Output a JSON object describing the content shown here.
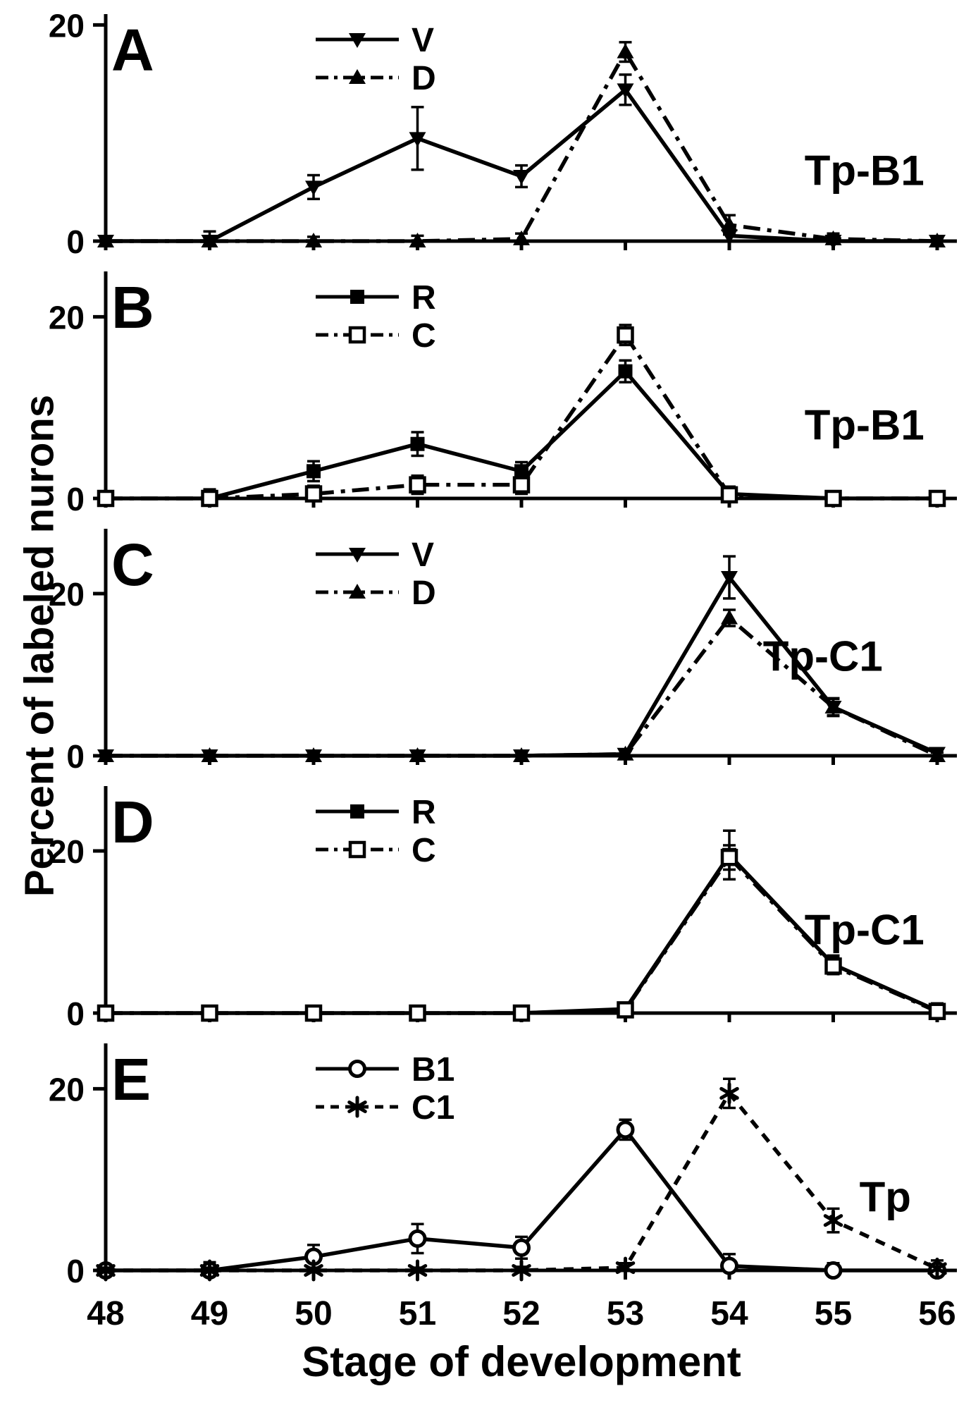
{
  "figure": {
    "background": "#ffffff",
    "ink": "#000000"
  },
  "chart_data": {
    "type": "line",
    "title": "",
    "xlabel": "Stage of development",
    "ylabel": "Percent of labeled nurons",
    "x": [
      48,
      49,
      50,
      51,
      52,
      53,
      54,
      55,
      56
    ],
    "yticks": [
      0,
      20
    ],
    "grid": false,
    "legend_position": "top-center-left",
    "panels": [
      {
        "letter": "A",
        "annotation": "Tp-B1",
        "annotation_xy": [
          55.3,
          5.2
        ],
        "ymax": 21,
        "series": [
          {
            "name": "V",
            "marker": "triangle-down",
            "line": "solid",
            "values": [
              0,
              0,
              5,
              9.5,
              6,
              14,
              0.5,
              0,
              0
            ],
            "errors": [
              0.4,
              0.9,
              1.1,
              2.9,
              1.0,
              1.4,
              0.7,
              0.5,
              0.3
            ]
          },
          {
            "name": "D",
            "marker": "triangle-up",
            "line": "dashdot",
            "values": [
              0,
              0,
              0,
              0,
              0.2,
              17.5,
              1.5,
              0.2,
              0
            ],
            "errors": [
              0.3,
              0.3,
              0.4,
              0.5,
              0.5,
              0.9,
              0.9,
              0.5,
              0.3
            ]
          }
        ]
      },
      {
        "letter": "B",
        "annotation": "Tp-B1",
        "annotation_xy": [
          55.3,
          6.5
        ],
        "ymax": 25,
        "series": [
          {
            "name": "R",
            "marker": "square",
            "line": "solid",
            "values": [
              0,
              0,
              3,
              6,
              3,
              14,
              0.5,
              0,
              0
            ],
            "errors": [
              0.4,
              1.0,
              1.1,
              1.3,
              1.0,
              1.2,
              0.8,
              0.5,
              0.4
            ]
          },
          {
            "name": "C",
            "marker": "square-open",
            "line": "dashdot",
            "values": [
              0,
              0,
              0.5,
              1.5,
              1.5,
              18,
              0.4,
              0,
              0
            ],
            "errors": [
              0.3,
              0.5,
              0.9,
              1.0,
              1.0,
              1.1,
              0.6,
              0.4,
              0.3
            ]
          }
        ]
      },
      {
        "letter": "C",
        "annotation": "Tp-C1",
        "annotation_xy": [
          54.9,
          10.5
        ],
        "ymax": 28,
        "series": [
          {
            "name": "V",
            "marker": "triangle-down",
            "line": "solid",
            "values": [
              0,
              0,
              0,
              0,
              0,
              0.2,
              22,
              6,
              0.3
            ],
            "errors": [
              0.3,
              0.4,
              0.4,
              0.5,
              0.5,
              0.4,
              2.6,
              1.1,
              0.5
            ]
          },
          {
            "name": "D",
            "marker": "triangle-up",
            "line": "dashdot",
            "values": [
              0,
              0,
              0,
              0,
              0,
              0.2,
              17,
              6,
              0
            ],
            "errors": [
              0.3,
              0.3,
              0.3,
              0.4,
              0.4,
              0.4,
              1.0,
              1.0,
              0.4
            ]
          }
        ]
      },
      {
        "letter": "D",
        "annotation": "Tp-C1",
        "annotation_xy": [
          55.3,
          8.5
        ],
        "ymax": 28,
        "series": [
          {
            "name": "R",
            "marker": "square",
            "line": "solid",
            "values": [
              0,
              0,
              0,
              0,
              0,
              0.5,
              19.5,
              6,
              0.3
            ],
            "errors": [
              0.3,
              0.3,
              0.3,
              0.3,
              0.3,
              0.6,
              3.0,
              1.1,
              0.9
            ]
          },
          {
            "name": "C",
            "marker": "square-open",
            "line": "dashdot",
            "values": [
              0,
              0,
              0,
              0,
              0,
              0.4,
              19.2,
              5.8,
              0.2
            ],
            "errors": [
              0.3,
              0.3,
              0.3,
              0.3,
              0.3,
              0.5,
              1.5,
              1.0,
              0.5
            ]
          }
        ]
      },
      {
        "letter": "E",
        "annotation": "Tp",
        "annotation_xy": [
          55.5,
          6.5
        ],
        "ymax": 25,
        "series": [
          {
            "name": "B1",
            "marker": "circle-open",
            "line": "solid",
            "values": [
              0,
              0,
              1.5,
              3.5,
              2.5,
              15.5,
              0.5,
              0,
              0
            ],
            "errors": [
              0.5,
              0.9,
              1.3,
              1.6,
              1.2,
              1.1,
              1.3,
              0.8,
              0.4
            ]
          },
          {
            "name": "C1",
            "marker": "asterisk",
            "line": "dashed",
            "values": [
              0,
              0,
              0,
              0,
              0,
              0.3,
              19.5,
              5.5,
              0.2
            ],
            "errors": [
              0.3,
              0.3,
              0.3,
              0.3,
              0.4,
              0.5,
              1.6,
              1.3,
              0.9
            ]
          }
        ]
      }
    ]
  }
}
